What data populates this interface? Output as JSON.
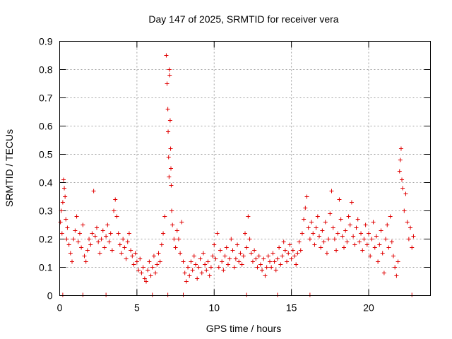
{
  "chart_data": {
    "type": "scatter",
    "title": "Day 147 of 2025, SRMTID for receiver vera",
    "xlabel": "GPS time / hours",
    "ylabel": "SRMTID / TECUs",
    "xlim": [
      0,
      24
    ],
    "ylim": [
      0,
      0.9
    ],
    "x_ticks": [
      0,
      5,
      10,
      15,
      20
    ],
    "x_tick_labels": [
      "0",
      "5",
      "10",
      "15",
      "20"
    ],
    "y_ticks": [
      0,
      0.1,
      0.2,
      0.3,
      0.4,
      0.5,
      0.6,
      0.7,
      0.8,
      0.9
    ],
    "y_tick_labels": [
      "0",
      "0.1",
      "0.2",
      "0.3",
      "0.4",
      "0.5",
      "0.6",
      "0.7",
      "0.8",
      "0.9"
    ],
    "grid": true,
    "marker": "plus",
    "colors": {
      "points": "#e00000"
    },
    "x_axis_marks": [
      0.2,
      1.5,
      3.0,
      6.0,
      7.0,
      8.0,
      12.1,
      14.1,
      16.2,
      22.8
    ],
    "series": [
      {
        "name": "SRMTID",
        "points": [
          [
            0.05,
            0.26
          ],
          [
            0.1,
            0.3
          ],
          [
            0.15,
            0.22
          ],
          [
            0.2,
            0.33
          ],
          [
            0.25,
            0.41
          ],
          [
            0.3,
            0.38
          ],
          [
            0.35,
            0.35
          ],
          [
            0.4,
            0.27
          ],
          [
            0.45,
            0.2
          ],
          [
            0.5,
            0.24
          ],
          [
            0.6,
            0.18
          ],
          [
            0.7,
            0.15
          ],
          [
            0.8,
            0.12
          ],
          [
            0.9,
            0.2
          ],
          [
            1.0,
            0.23
          ],
          [
            1.1,
            0.28
          ],
          [
            1.2,
            0.19
          ],
          [
            1.3,
            0.22
          ],
          [
            1.4,
            0.17
          ],
          [
            1.5,
            0.25
          ],
          [
            1.6,
            0.14
          ],
          [
            1.7,
            0.12
          ],
          [
            1.8,
            0.16
          ],
          [
            1.9,
            0.2
          ],
          [
            2.0,
            0.18
          ],
          [
            2.1,
            0.22
          ],
          [
            2.2,
            0.37
          ],
          [
            2.3,
            0.21
          ],
          [
            2.4,
            0.24
          ],
          [
            2.5,
            0.19
          ],
          [
            2.6,
            0.15
          ],
          [
            2.7,
            0.2
          ],
          [
            2.8,
            0.23
          ],
          [
            2.9,
            0.17
          ],
          [
            3.0,
            0.21
          ],
          [
            3.1,
            0.25
          ],
          [
            3.2,
            0.19
          ],
          [
            3.3,
            0.22
          ],
          [
            3.4,
            0.16
          ],
          [
            3.5,
            0.3
          ],
          [
            3.6,
            0.34
          ],
          [
            3.7,
            0.28
          ],
          [
            3.8,
            0.22
          ],
          [
            3.9,
            0.18
          ],
          [
            4.0,
            0.15
          ],
          [
            4.1,
            0.2
          ],
          [
            4.2,
            0.17
          ],
          [
            4.3,
            0.13
          ],
          [
            4.4,
            0.19
          ],
          [
            4.5,
            0.22
          ],
          [
            4.6,
            0.16
          ],
          [
            4.7,
            0.14
          ],
          [
            4.8,
            0.11
          ],
          [
            4.9,
            0.15
          ],
          [
            5.0,
            0.12
          ],
          [
            5.1,
            0.09
          ],
          [
            5.2,
            0.13
          ],
          [
            5.3,
            0.08
          ],
          [
            5.4,
            0.1
          ],
          [
            5.5,
            0.06
          ],
          [
            5.6,
            0.05
          ],
          [
            5.7,
            0.09
          ],
          [
            5.8,
            0.12
          ],
          [
            5.9,
            0.07
          ],
          [
            6.0,
            0.1
          ],
          [
            6.1,
            0.14
          ],
          [
            6.2,
            0.08
          ],
          [
            6.3,
            0.11
          ],
          [
            6.4,
            0.15
          ],
          [
            6.5,
            0.12
          ],
          [
            6.6,
            0.18
          ],
          [
            6.7,
            0.22
          ],
          [
            6.8,
            0.28
          ],
          [
            6.9,
            0.85
          ],
          [
            6.95,
            0.75
          ],
          [
            7.0,
            0.66
          ],
          [
            7.02,
            0.58
          ],
          [
            7.05,
            0.49
          ],
          [
            7.08,
            0.42
          ],
          [
            7.1,
            0.8
          ],
          [
            7.12,
            0.78
          ],
          [
            7.15,
            0.62
          ],
          [
            7.18,
            0.52
          ],
          [
            7.2,
            0.45
          ],
          [
            7.22,
            0.39
          ],
          [
            7.25,
            0.3
          ],
          [
            7.3,
            0.25
          ],
          [
            7.4,
            0.2
          ],
          [
            7.5,
            0.17
          ],
          [
            7.6,
            0.23
          ],
          [
            7.7,
            0.2
          ],
          [
            7.8,
            0.15
          ],
          [
            7.9,
            0.26
          ],
          [
            8.0,
            0.12
          ],
          [
            8.1,
            0.08
          ],
          [
            8.2,
            0.05
          ],
          [
            8.3,
            0.1
          ],
          [
            8.4,
            0.07
          ],
          [
            8.5,
            0.12
          ],
          [
            8.6,
            0.09
          ],
          [
            8.7,
            0.14
          ],
          [
            8.8,
            0.11
          ],
          [
            8.9,
            0.06
          ],
          [
            9.0,
            0.1
          ],
          [
            9.1,
            0.13
          ],
          [
            9.2,
            0.08
          ],
          [
            9.3,
            0.15
          ],
          [
            9.4,
            0.11
          ],
          [
            9.5,
            0.09
          ],
          [
            9.6,
            0.12
          ],
          [
            9.7,
            0.07
          ],
          [
            9.8,
            0.1
          ],
          [
            9.9,
            0.14
          ],
          [
            10.0,
            0.18
          ],
          [
            10.1,
            0.13
          ],
          [
            10.2,
            0.22
          ],
          [
            10.3,
            0.1
          ],
          [
            10.4,
            0.16
          ],
          [
            10.5,
            0.12
          ],
          [
            10.6,
            0.09
          ],
          [
            10.7,
            0.14
          ],
          [
            10.8,
            0.17
          ],
          [
            10.9,
            0.11
          ],
          [
            11.0,
            0.13
          ],
          [
            11.1,
            0.2
          ],
          [
            11.2,
            0.16
          ],
          [
            11.3,
            0.1
          ],
          [
            11.4,
            0.13
          ],
          [
            11.5,
            0.18
          ],
          [
            11.6,
            0.12
          ],
          [
            11.7,
            0.15
          ],
          [
            11.8,
            0.11
          ],
          [
            11.9,
            0.14
          ],
          [
            12.0,
            0.22
          ],
          [
            12.1,
            0.17
          ],
          [
            12.2,
            0.28
          ],
          [
            12.3,
            0.2
          ],
          [
            12.4,
            0.15
          ],
          [
            12.5,
            0.12
          ],
          [
            12.6,
            0.16
          ],
          [
            12.7,
            0.13
          ],
          [
            12.8,
            0.1
          ],
          [
            12.9,
            0.14
          ],
          [
            13.0,
            0.11
          ],
          [
            13.1,
            0.09
          ],
          [
            13.2,
            0.13
          ],
          [
            13.3,
            0.07
          ],
          [
            13.4,
            0.1
          ],
          [
            13.5,
            0.14
          ],
          [
            13.6,
            0.12
          ],
          [
            13.7,
            0.1
          ],
          [
            13.8,
            0.15
          ],
          [
            13.9,
            0.12
          ],
          [
            14.0,
            0.09
          ],
          [
            14.1,
            0.13
          ],
          [
            14.2,
            0.17
          ],
          [
            14.3,
            0.11
          ],
          [
            14.4,
            0.14
          ],
          [
            14.5,
            0.19
          ],
          [
            14.6,
            0.16
          ],
          [
            14.7,
            0.12
          ],
          [
            14.8,
            0.15
          ],
          [
            14.9,
            0.18
          ],
          [
            15.0,
            0.13
          ],
          [
            15.1,
            0.16
          ],
          [
            15.2,
            0.14
          ],
          [
            15.3,
            0.11
          ],
          [
            15.4,
            0.15
          ],
          [
            15.5,
            0.19
          ],
          [
            15.6,
            0.16
          ],
          [
            15.7,
            0.22
          ],
          [
            15.8,
            0.27
          ],
          [
            15.9,
            0.31
          ],
          [
            16.0,
            0.35
          ],
          [
            16.1,
            0.24
          ],
          [
            16.2,
            0.2
          ],
          [
            16.3,
            0.26
          ],
          [
            16.4,
            0.22
          ],
          [
            16.5,
            0.18
          ],
          [
            16.6,
            0.24
          ],
          [
            16.7,
            0.28
          ],
          [
            16.8,
            0.21
          ],
          [
            16.9,
            0.17
          ],
          [
            17.0,
            0.23
          ],
          [
            17.1,
            0.19
          ],
          [
            17.2,
            0.26
          ],
          [
            17.3,
            0.15
          ],
          [
            17.4,
            0.2
          ],
          [
            17.5,
            0.29
          ],
          [
            17.6,
            0.37
          ],
          [
            17.7,
            0.24
          ],
          [
            17.8,
            0.2
          ],
          [
            17.9,
            0.16
          ],
          [
            18.0,
            0.22
          ],
          [
            18.1,
            0.34
          ],
          [
            18.2,
            0.27
          ],
          [
            18.3,
            0.21
          ],
          [
            18.4,
            0.17
          ],
          [
            18.5,
            0.23
          ],
          [
            18.6,
            0.19
          ],
          [
            18.7,
            0.28
          ],
          [
            18.8,
            0.25
          ],
          [
            18.9,
            0.33
          ],
          [
            19.0,
            0.21
          ],
          [
            19.1,
            0.18
          ],
          [
            19.2,
            0.24
          ],
          [
            19.3,
            0.27
          ],
          [
            19.4,
            0.19
          ],
          [
            19.5,
            0.22
          ],
          [
            19.6,
            0.16
          ],
          [
            19.7,
            0.2
          ],
          [
            19.8,
            0.25
          ],
          [
            19.9,
            0.18
          ],
          [
            20.0,
            0.22
          ],
          [
            20.1,
            0.14
          ],
          [
            20.2,
            0.2
          ],
          [
            20.3,
            0.26
          ],
          [
            20.4,
            0.17
          ],
          [
            20.5,
            0.21
          ],
          [
            20.6,
            0.12
          ],
          [
            20.7,
            0.18
          ],
          [
            20.8,
            0.23
          ],
          [
            20.9,
            0.15
          ],
          [
            21.0,
            0.08
          ],
          [
            21.1,
            0.2
          ],
          [
            21.2,
            0.25
          ],
          [
            21.3,
            0.17
          ],
          [
            21.4,
            0.28
          ],
          [
            21.5,
            0.19
          ],
          [
            21.6,
            0.14
          ],
          [
            21.7,
            0.1
          ],
          [
            21.8,
            0.07
          ],
          [
            21.9,
            0.12
          ],
          [
            22.0,
            0.44
          ],
          [
            22.05,
            0.48
          ],
          [
            22.1,
            0.52
          ],
          [
            22.15,
            0.41
          ],
          [
            22.2,
            0.38
          ],
          [
            22.3,
            0.3
          ],
          [
            22.4,
            0.36
          ],
          [
            22.5,
            0.26
          ],
          [
            22.6,
            0.2
          ],
          [
            22.7,
            0.24
          ],
          [
            22.8,
            0.17
          ],
          [
            22.9,
            0.21
          ]
        ]
      }
    ]
  }
}
